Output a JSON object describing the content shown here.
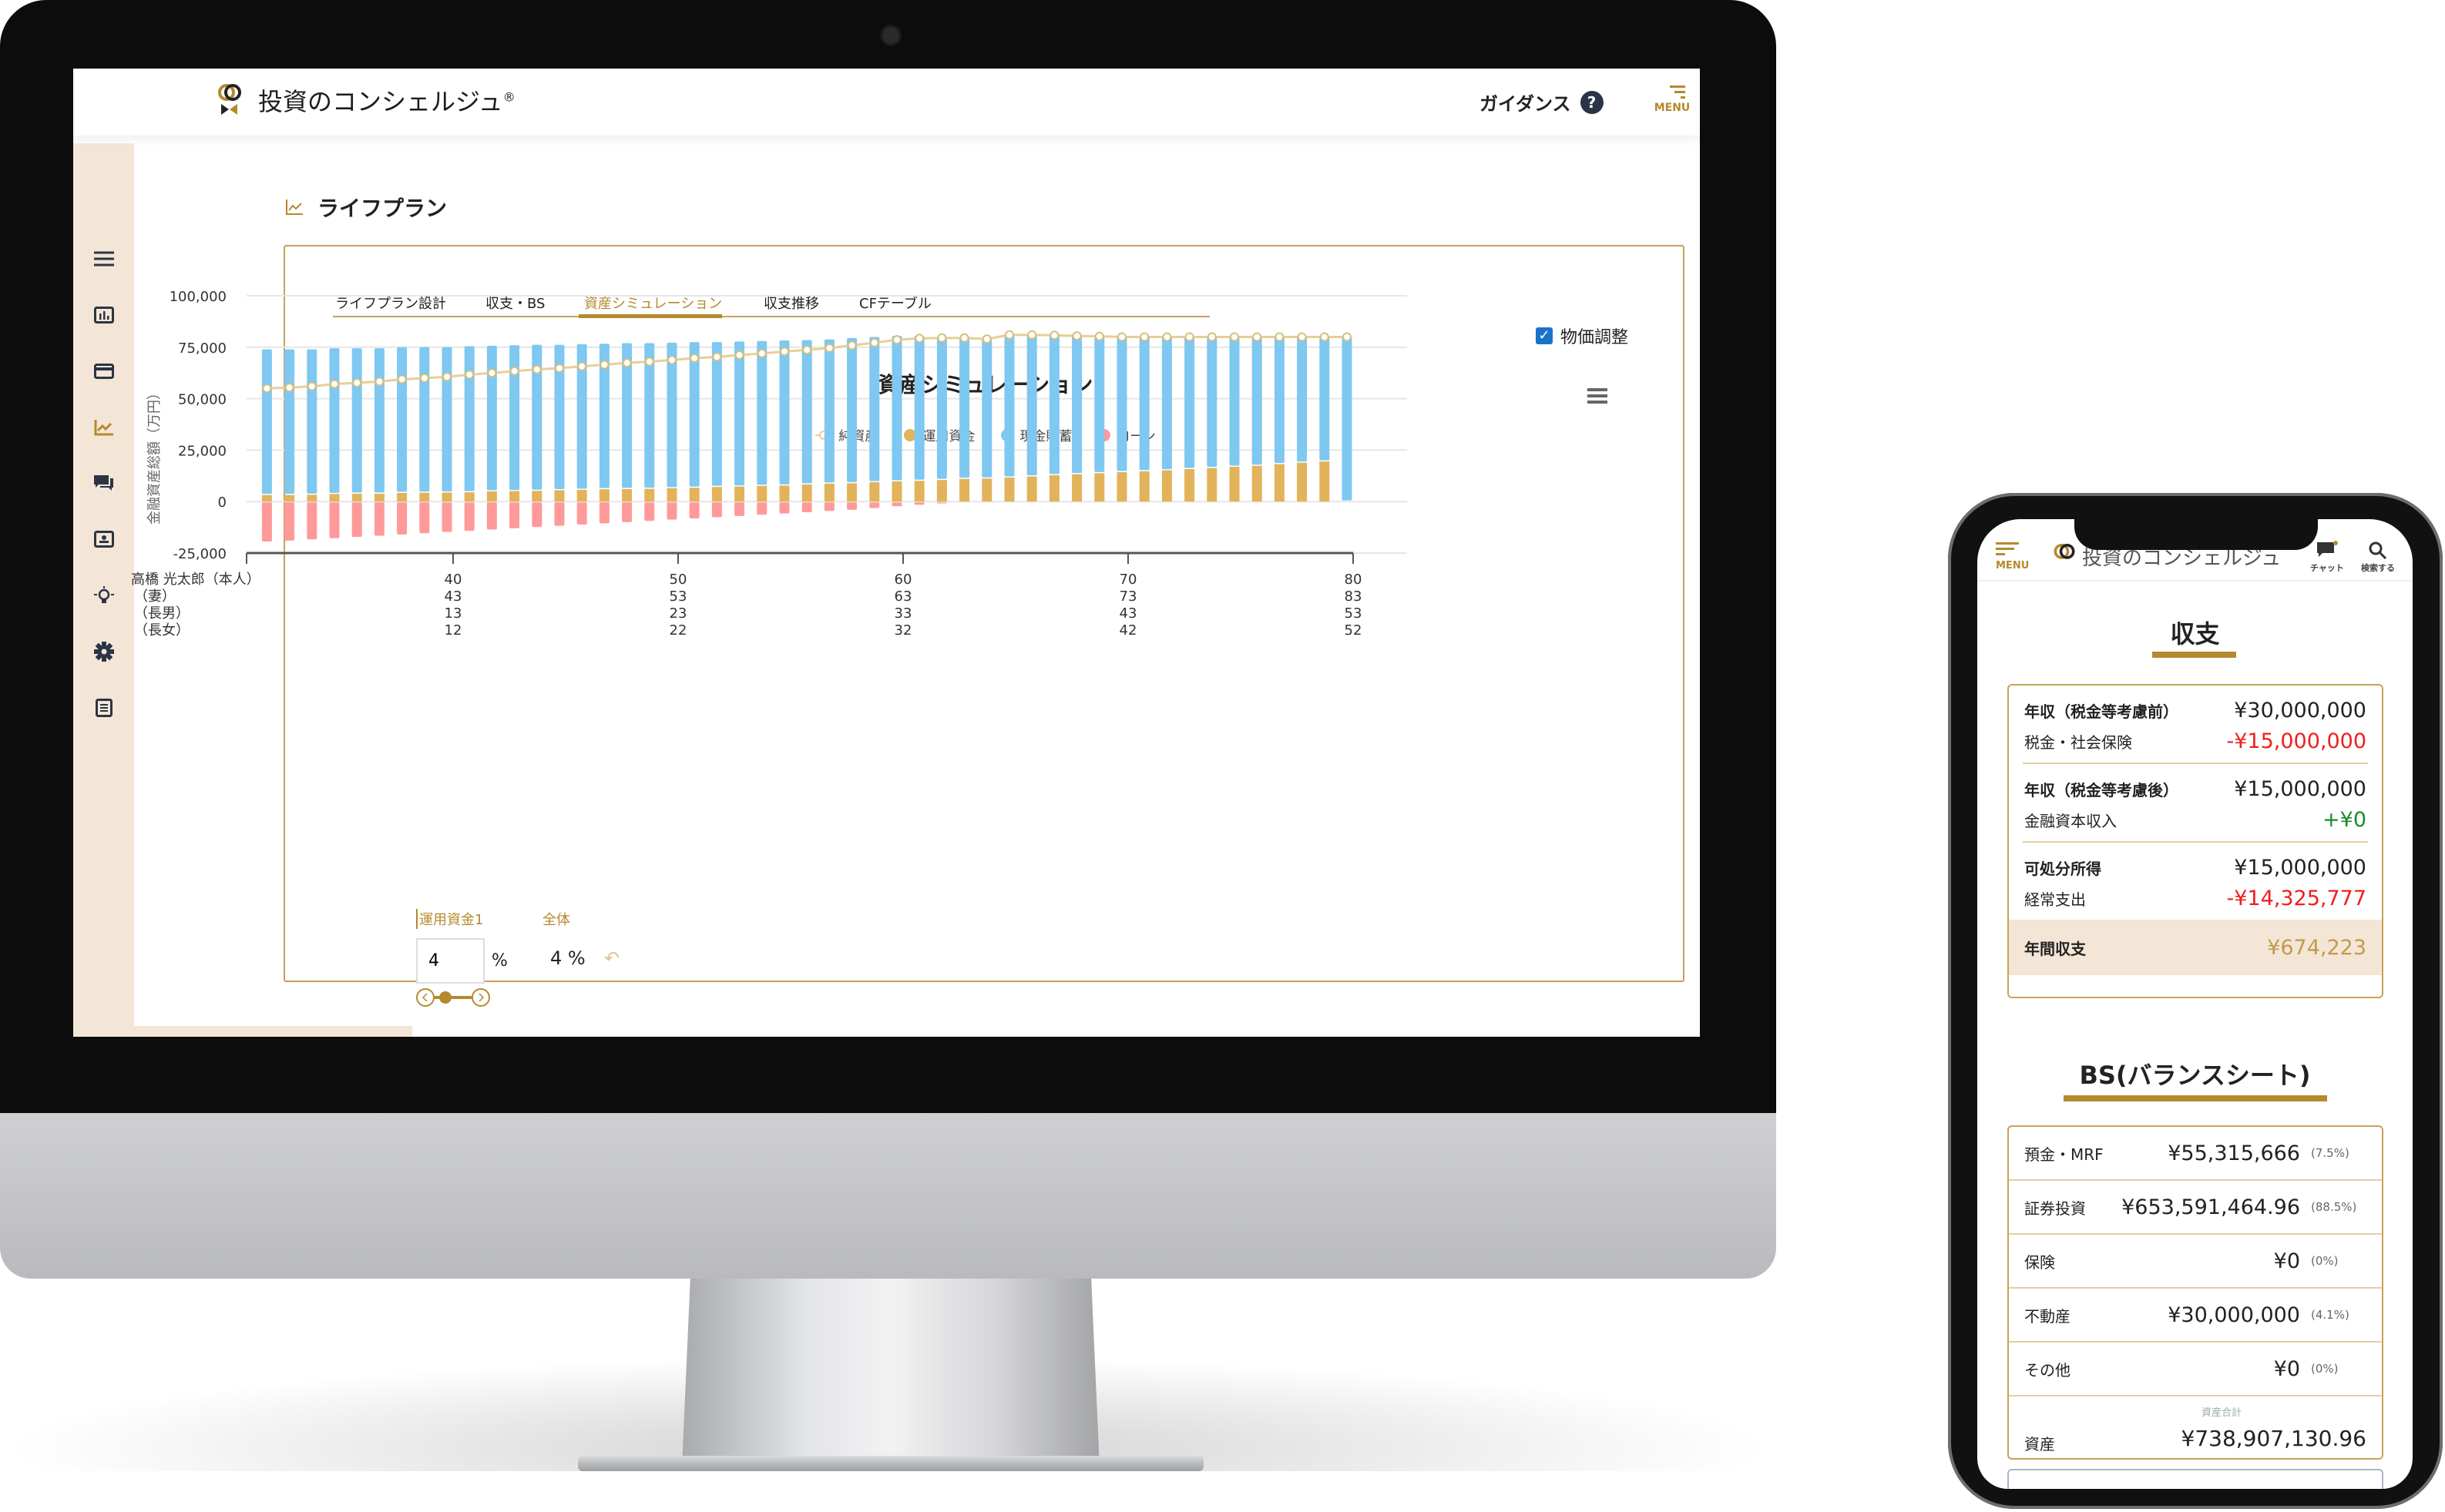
{
  "app": {
    "brand": "投資のコンシェルジュ",
    "registered": "®",
    "guidance": "ガイダンス",
    "guidance_icon": "?",
    "menu": "MENU"
  },
  "sidebar": {
    "items": [
      {
        "icon": "hamburger-icon"
      },
      {
        "icon": "bar-chart-icon"
      },
      {
        "icon": "credit-card-icon"
      },
      {
        "icon": "trend-chart-icon",
        "active": true
      },
      {
        "icon": "chat-icon"
      },
      {
        "icon": "contact-card-icon"
      },
      {
        "icon": "lightbulb-icon"
      },
      {
        "icon": "gear-icon"
      },
      {
        "icon": "document-icon"
      }
    ]
  },
  "page": {
    "title": "ライフプラン"
  },
  "tabs": [
    {
      "label": "ライフプラン設計"
    },
    {
      "label": "収支・BS"
    },
    {
      "label": "資産シミュレーション",
      "active": true
    },
    {
      "label": "収支推移"
    },
    {
      "label": "CFテーブル"
    }
  ],
  "price_adjust": {
    "label": "物価調整",
    "checked": true
  },
  "chart_data": {
    "type": "bar",
    "stacked": true,
    "title": "資産シミュレーション",
    "ylabel": "金融資産総額（万円）",
    "ylim": [
      -25000,
      100000
    ],
    "yticks": [
      "100,000",
      "75,000",
      "50,000",
      "25,000",
      "0",
      "-25,000"
    ],
    "ytick_values": [
      100000,
      75000,
      50000,
      25000,
      0,
      -25000
    ],
    "grid": true,
    "legend_position": "top",
    "x": [
      32,
      33,
      34,
      35,
      36,
      37,
      38,
      39,
      40,
      41,
      42,
      43,
      44,
      45,
      46,
      47,
      48,
      49,
      50,
      51,
      52,
      53,
      54,
      55,
      56,
      57,
      58,
      59,
      60,
      61,
      62,
      63,
      64,
      65,
      66,
      67,
      68,
      69,
      70,
      71,
      72,
      73,
      74,
      75,
      76,
      77,
      78,
      79,
      80
    ],
    "series": [
      {
        "name": "純資産",
        "type": "line",
        "color": "#e6cf98",
        "values": [
          55000,
          55400,
          56000,
          57100,
          57700,
          58300,
          59400,
          60000,
          60600,
          61700,
          62500,
          63400,
          64200,
          64800,
          65700,
          66500,
          67400,
          68000,
          68800,
          69700,
          70300,
          71200,
          72000,
          72900,
          73700,
          74600,
          75900,
          77200,
          78600,
          79300,
          79500,
          79500,
          79000,
          81000,
          81000,
          80800,
          80500,
          80300,
          80000,
          80000,
          80000,
          80000,
          80000,
          80000,
          80000,
          80000,
          80000,
          80000,
          80000
        ]
      },
      {
        "name": "運用資金",
        "type": "bar",
        "color": "#e2b35a",
        "values": [
          3200,
          3200,
          3300,
          3700,
          3800,
          3800,
          4200,
          4300,
          4400,
          4500,
          5000,
          5100,
          5200,
          5500,
          5700,
          6000,
          6100,
          6200,
          6500,
          6700,
          7100,
          7300,
          7600,
          7800,
          8300,
          8700,
          8900,
          9400,
          9800,
          10100,
          10500,
          11000,
          11200,
          11700,
          12200,
          12800,
          13300,
          13800,
          14300,
          14700,
          15200,
          15800,
          16300,
          16900,
          17400,
          18200,
          18900,
          19500,
          0
        ]
      },
      {
        "name": "現金貯蓄",
        "type": "bar",
        "color": "#7ec8f2",
        "values": [
          70800,
          70800,
          70700,
          70800,
          70700,
          70700,
          70800,
          70700,
          70600,
          71000,
          70700,
          70900,
          71000,
          70700,
          70800,
          70700,
          70900,
          70800,
          70700,
          70800,
          70400,
          70500,
          70400,
          70500,
          70200,
          70100,
          70600,
          70600,
          70700,
          70400,
          69500,
          68500,
          67800,
          69300,
          68800,
          68000,
          67200,
          66500,
          65700,
          65300,
          64800,
          64200,
          63700,
          63100,
          62600,
          61800,
          61100,
          60500,
          80000
        ]
      },
      {
        "name": "ローン",
        "type": "bar",
        "color": "#ff9a9a",
        "values": [
          -19000,
          -18600,
          -18000,
          -17400,
          -16800,
          -16200,
          -15600,
          -15000,
          -14400,
          -13800,
          -13200,
          -12600,
          -12000,
          -11400,
          -10800,
          -10200,
          -9600,
          -9000,
          -8400,
          -7800,
          -7200,
          -6600,
          -6000,
          -5400,
          -4800,
          -4200,
          -3600,
          -2800,
          -1900,
          -1200,
          -500,
          0,
          0,
          0,
          0,
          0,
          0,
          0,
          0,
          0,
          0,
          0,
          0,
          0,
          0,
          0,
          0,
          0,
          0
        ]
      }
    ],
    "age_rows": [
      {
        "label": "高橋 光太郎（本人）",
        "ticks": [
          "40",
          "50",
          "60",
          "70",
          "80"
        ]
      },
      {
        "label": "（妻）",
        "ticks": [
          "43",
          "53",
          "63",
          "73",
          "83"
        ]
      },
      {
        "label": "（長男）",
        "ticks": [
          "13",
          "23",
          "33",
          "43",
          "53"
        ]
      },
      {
        "label": "（長女）",
        "ticks": [
          "12",
          "22",
          "32",
          "42",
          "52"
        ]
      }
    ],
    "age_tick_values": [
      40,
      50,
      60,
      70,
      80
    ]
  },
  "controls": {
    "tab1": "運用資金1",
    "tab2": "全体",
    "rate_value": "4",
    "rate_unit": "%",
    "overall": "4 %",
    "undo_icon": "↶",
    "slider_value": 4
  },
  "phone": {
    "menu": "MENU",
    "brand": "投資のコンシェルジュ",
    "chat": "チャット",
    "search": "検索する",
    "income": {
      "title": "収支",
      "groups": [
        [
          {
            "label": "年収（税金等考慮前）",
            "value": "¥30,000,000",
            "tone": ""
          },
          {
            "label": "税金・社会保険",
            "value": "-¥15,000,000",
            "tone": "red"
          }
        ],
        [
          {
            "label": "年収（税金等考慮後）",
            "value": "¥15,000,000",
            "tone": ""
          },
          {
            "label": "金融資本収入",
            "value": "+¥0",
            "tone": "green"
          }
        ],
        [
          {
            "label": "可処分所得",
            "value": "¥15,000,000",
            "tone": ""
          },
          {
            "label": "経常支出",
            "value": "-¥14,325,777",
            "tone": "red"
          }
        ]
      ],
      "annual_label": "年間収支",
      "annual_value": "¥674,223"
    },
    "bs": {
      "title": "BS(バランスシート)",
      "rows": [
        {
          "label": "預金・MRF",
          "value": "¥55,315,666",
          "pct": "(7.5%)"
        },
        {
          "label": "証券投資",
          "value": "¥653,591,464.96",
          "pct": "(88.5%)"
        },
        {
          "label": "保険",
          "value": "¥0",
          "pct": "(0%)"
        },
        {
          "label": "不動産",
          "value": "¥30,000,000",
          "pct": "(4.1%)"
        },
        {
          "label": "その他",
          "value": "¥0",
          "pct": "(0%)"
        }
      ],
      "total_caption": "資産合計",
      "total_label": "資産",
      "total_value": "¥738,907,130.96"
    }
  },
  "colors": {
    "accent": "#b5892d",
    "sidebar_bg": "#f3e6d6",
    "negative": "#f01e1e",
    "positive": "#1a8b2a"
  }
}
